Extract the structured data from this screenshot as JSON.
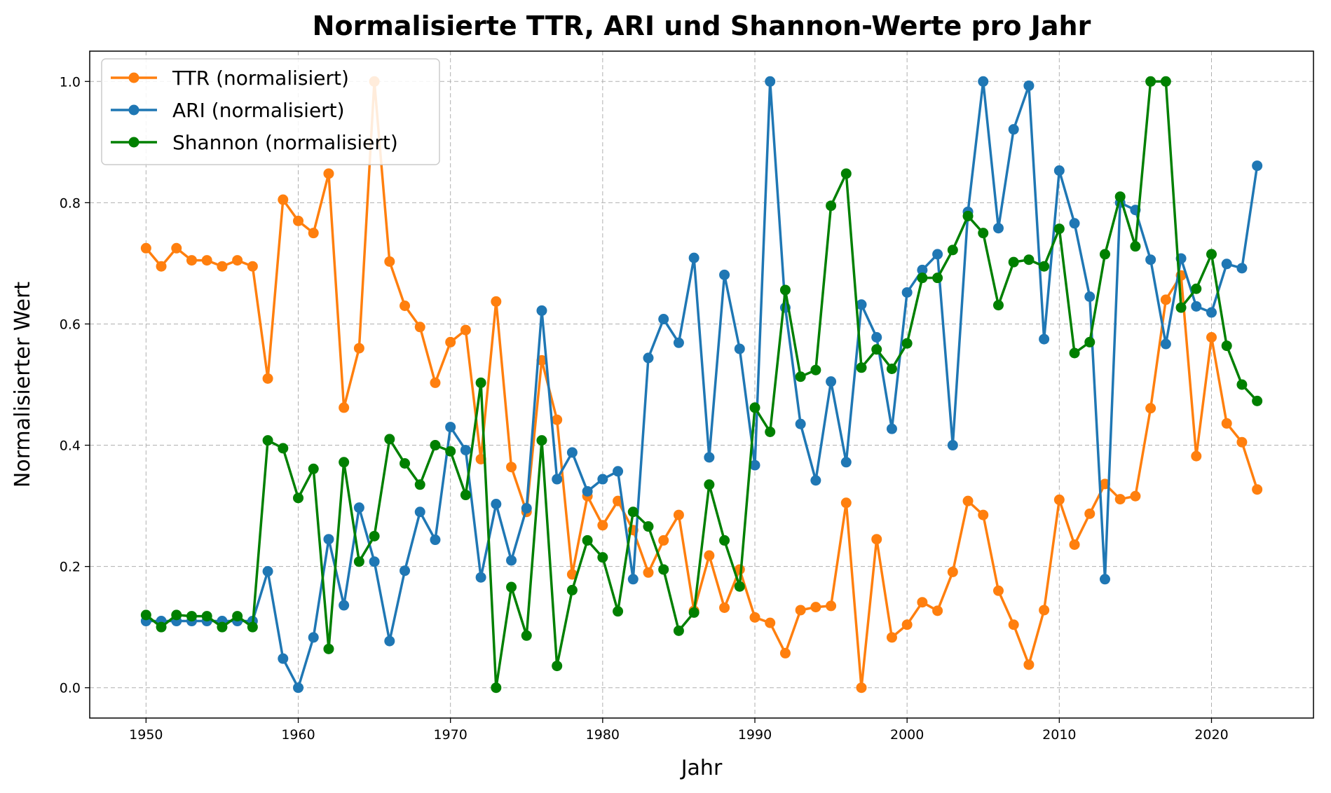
{
  "chart_data": {
    "type": "line",
    "title": "Normalisierte TTR, ARI und Shannon-Werte pro Jahr",
    "xlabel": "Jahr",
    "ylabel": "Normalisierter Wert",
    "xlim": [
      1946.3,
      2026.7
    ],
    "ylim": [
      -0.05,
      1.05
    ],
    "xticks": [
      1950,
      1960,
      1970,
      1980,
      1990,
      2000,
      2010,
      2020
    ],
    "yticks": [
      0.0,
      0.2,
      0.4,
      0.6,
      0.8,
      1.0
    ],
    "ytick_labels": [
      "0.0",
      "0.2",
      "0.4",
      "0.6",
      "0.8",
      "1.0"
    ],
    "grid": true,
    "legend_position": "top-left",
    "x": [
      1950,
      1951,
      1952,
      1953,
      1954,
      1955,
      1956,
      1957,
      1958,
      1959,
      1960,
      1961,
      1962,
      1963,
      1964,
      1965,
      1966,
      1967,
      1968,
      1969,
      1970,
      1971,
      1972,
      1973,
      1974,
      1975,
      1976,
      1977,
      1978,
      1979,
      1980,
      1981,
      1982,
      1983,
      1984,
      1985,
      1986,
      1987,
      1988,
      1989,
      1990,
      1991,
      1992,
      1993,
      1994,
      1995,
      1996,
      1997,
      1998,
      1999,
      2000,
      2001,
      2002,
      2003,
      2004,
      2005,
      2006,
      2007,
      2008,
      2009,
      2010,
      2011,
      2012,
      2013,
      2014,
      2015,
      2016,
      2017,
      2018,
      2019,
      2020,
      2021,
      2022,
      2023
    ],
    "series": [
      {
        "name": "TTR (normalisiert)",
        "color": "#ff7f0e",
        "values": [
          0.725,
          0.695,
          0.725,
          0.705,
          0.705,
          0.695,
          0.705,
          0.695,
          0.51,
          0.805,
          0.77,
          0.75,
          0.848,
          0.462,
          0.56,
          1.0,
          0.703,
          0.63,
          0.595,
          0.503,
          0.57,
          0.59,
          0.377,
          0.637,
          0.364,
          0.29,
          0.54,
          0.442,
          0.187,
          0.316,
          0.268,
          0.308,
          0.26,
          0.19,
          0.243,
          0.285,
          0.127,
          0.218,
          0.132,
          0.195,
          0.116,
          0.107,
          0.057,
          0.128,
          0.133,
          0.135,
          0.305,
          0.0,
          0.245,
          0.083,
          0.104,
          0.141,
          0.127,
          0.191,
          0.308,
          0.285,
          0.16,
          0.104,
          0.038,
          0.128,
          0.31,
          0.236,
          0.287,
          0.336,
          0.311,
          0.316,
          0.461,
          0.64,
          0.68,
          0.382,
          0.578,
          0.436,
          0.405,
          0.327
        ]
      },
      {
        "name": "ARI (normalisiert)",
        "color": "#1f77b4",
        "values": [
          0.11,
          0.11,
          0.11,
          0.11,
          0.11,
          0.11,
          0.11,
          0.11,
          0.192,
          0.048,
          0.0,
          0.083,
          0.245,
          0.136,
          0.297,
          0.208,
          0.077,
          0.193,
          0.29,
          0.244,
          0.43,
          0.392,
          0.182,
          0.303,
          0.21,
          0.296,
          0.622,
          0.344,
          0.388,
          0.324,
          0.344,
          0.357,
          0.179,
          0.544,
          0.608,
          0.569,
          0.709,
          0.38,
          0.681,
          0.559,
          0.367,
          1.0,
          0.627,
          0.435,
          0.342,
          0.505,
          0.372,
          0.632,
          0.578,
          0.427,
          0.652,
          0.689,
          0.715,
          0.4,
          0.785,
          1.0,
          0.758,
          0.921,
          0.993,
          0.575,
          0.853,
          0.766,
          0.645,
          0.179,
          0.8,
          0.788,
          0.706,
          0.567,
          0.708,
          0.629,
          0.619,
          0.699,
          0.692,
          0.861
        ]
      },
      {
        "name": "Shannon (normalisiert)",
        "color": "#008000",
        "values": [
          0.12,
          0.1,
          0.12,
          0.118,
          0.118,
          0.1,
          0.118,
          0.1,
          0.408,
          0.395,
          0.313,
          0.361,
          0.064,
          0.372,
          0.208,
          0.25,
          0.41,
          0.37,
          0.335,
          0.4,
          0.39,
          0.318,
          0.503,
          0.0,
          0.166,
          0.086,
          0.408,
          0.036,
          0.161,
          0.243,
          0.215,
          0.126,
          0.29,
          0.266,
          0.195,
          0.094,
          0.124,
          0.335,
          0.243,
          0.167,
          0.462,
          0.422,
          0.656,
          0.513,
          0.524,
          0.795,
          0.848,
          0.528,
          0.558,
          0.526,
          0.568,
          0.676,
          0.676,
          0.722,
          0.778,
          0.75,
          0.631,
          0.702,
          0.706,
          0.695,
          0.757,
          0.552,
          0.57,
          0.715,
          0.81,
          0.728,
          1.0,
          1.0,
          0.627,
          0.658,
          0.715,
          0.564,
          0.5,
          0.473
        ]
      }
    ]
  }
}
